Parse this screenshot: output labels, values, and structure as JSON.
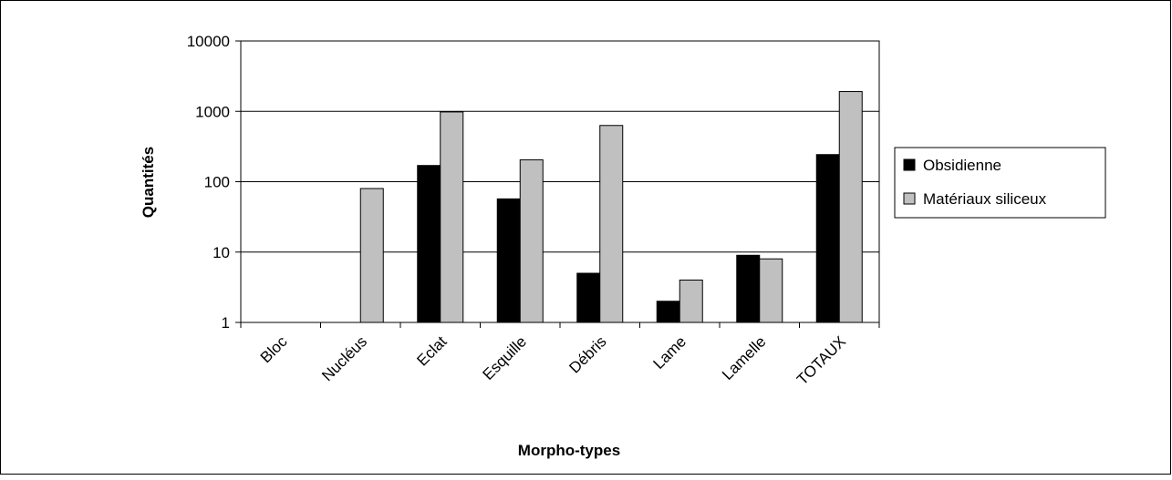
{
  "chart_data": {
    "type": "bar",
    "title": "",
    "xlabel": "Morpho-types",
    "ylabel": "Quantités",
    "y_scale": "log",
    "ylim": [
      1,
      10000
    ],
    "y_ticks": [
      "1",
      "10",
      "100",
      "1000",
      "10000"
    ],
    "grid": true,
    "legend_position": "right",
    "categories": [
      "Bloc",
      "Nucléus",
      "Eclat",
      "Esquille",
      "Débris",
      "Lame",
      "Lamelle",
      "TOTAUX"
    ],
    "series": [
      {
        "name": "Obsidienne",
        "color": "#000000",
        "values": [
          0,
          0,
          170,
          57,
          5,
          2,
          9,
          243
        ]
      },
      {
        "name": "Matériaux siliceux",
        "color": "#c0c0c0",
        "values": [
          0,
          80,
          980,
          205,
          630,
          4,
          8,
          1910
        ]
      }
    ]
  }
}
